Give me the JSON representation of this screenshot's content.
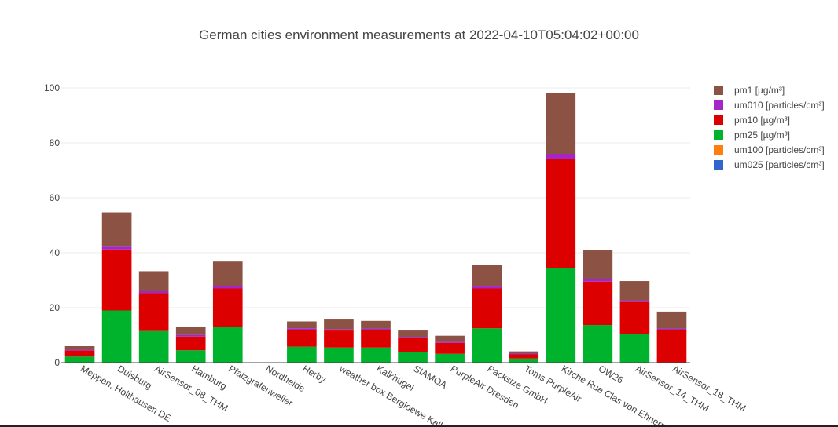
{
  "chart_data": {
    "type": "bar",
    "stacked": true,
    "title": "German cities environment measurements at 2022-04-10T05:04:02+00:00",
    "xlabel": "",
    "ylabel": "",
    "ylim": [
      0,
      104
    ],
    "yticks": [
      0,
      20,
      40,
      60,
      80,
      100
    ],
    "grid": true,
    "legend_position": "right",
    "categories": [
      "Meppen, Holthausen DE",
      "Duisburg",
      "AirSensor_08_THM",
      "Hamburg",
      "Pfalzgrafenweiler",
      "Nordheide",
      "Herby",
      "weather box Bergloewe Kalkhuegel",
      "Kalkhügel",
      "SIAMOA",
      "PurpleAir Dresden",
      "Packsize GmbH",
      "Toms PurpleAir",
      "Kirche Rue Clas von Ehnern",
      "OW26",
      "AirSensor_14_THM",
      "AirSensor_18_THM"
    ],
    "series": [
      {
        "name": "um025 [particles/cm³]",
        "color": "#3366cc",
        "values": [
          0,
          0,
          0,
          0,
          0,
          0,
          0,
          0,
          0,
          0,
          0,
          0,
          0,
          0,
          0,
          0,
          0
        ]
      },
      {
        "name": "um100 [particles/cm³]",
        "color": "#ff7f0e",
        "values": [
          0,
          0,
          0,
          0,
          0,
          0,
          0,
          0,
          0,
          0,
          0,
          0,
          0,
          0,
          0,
          0,
          0
        ]
      },
      {
        "name": "pm25 [µg/m³]",
        "color": "#00b32c",
        "values": [
          2.2,
          19,
          11.5,
          4.5,
          13,
          0,
          5.8,
          5.5,
          5.5,
          4,
          3.2,
          12.5,
          1.5,
          34.5,
          13.7,
          10.3,
          0
        ]
      },
      {
        "name": "pm10 [µg/m³]",
        "color": "#dd0000",
        "values": [
          2.2,
          22.2,
          13.8,
          5,
          14,
          0,
          6.2,
          6.2,
          6.3,
          5,
          4,
          14.5,
          1.5,
          39.5,
          15.8,
          11.8,
          12
        ]
      },
      {
        "name": "um010 [particles/cm³]",
        "color": "#a426c6",
        "values": [
          0.3,
          1,
          0.7,
          0.6,
          1,
          0,
          0.5,
          0.5,
          0.6,
          0.4,
          0.4,
          0.7,
          0.3,
          2,
          0.8,
          0.6,
          0.4
        ]
      },
      {
        "name": "pm1 [µg/m³]",
        "color": "#8c5244",
        "values": [
          1.3,
          12.5,
          7.3,
          2.9,
          8.8,
          0,
          2.5,
          3.5,
          2.8,
          2.3,
          2.2,
          8,
          0.8,
          22,
          10.8,
          7,
          6.2
        ]
      }
    ],
    "legend_order": [
      "pm1 [µg/m³]",
      "um010 [particles/cm³]",
      "pm10 [µg/m³]",
      "pm25 [µg/m³]",
      "um100 [particles/cm³]",
      "um025 [particles/cm³]"
    ]
  }
}
